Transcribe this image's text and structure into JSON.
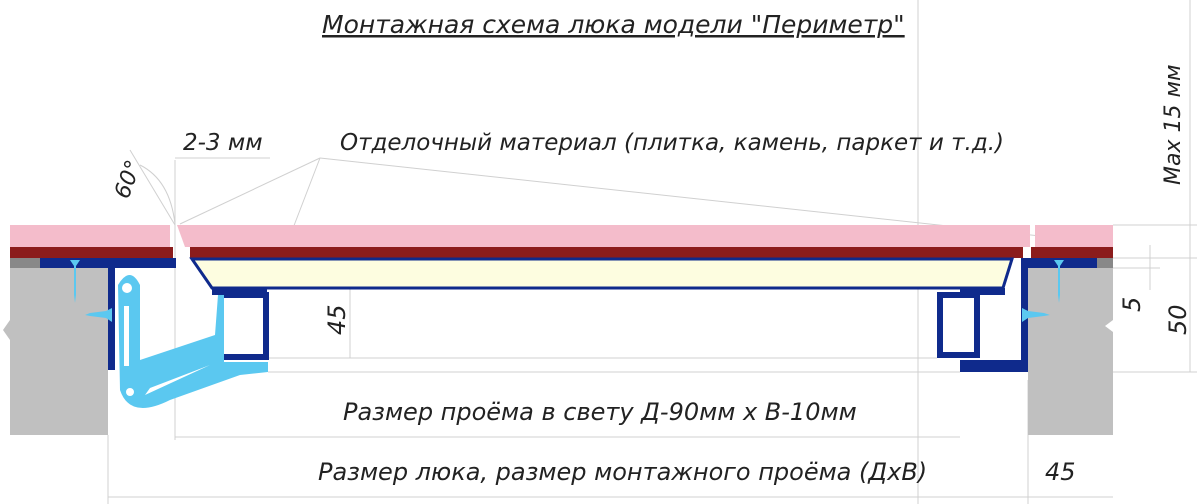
{
  "title": "Монтажная схема люка модели \"Периметр\"",
  "labels": {
    "angle": "60°",
    "gap": "2-3 мм",
    "finish_material": "Отделочный материал (плитка, камень, паркет и т.д.)",
    "max_thickness": "Max 15 мм",
    "depth": "45",
    "step": "5",
    "height": "50",
    "clear_opening": "Размер проёма в свету Д-90мм х В-10мм",
    "hatch_size": "Размер люка, размер монтажного проёма (ДхВ)",
    "side_width": "45"
  },
  "colors": {
    "tile": "#f4bccb",
    "adhesive": "#8b1c1c",
    "frame": "#0f2a8c",
    "bracket": "#5bc8f0",
    "insert": "#fdfde0",
    "wall": "#c0c0c0"
  }
}
